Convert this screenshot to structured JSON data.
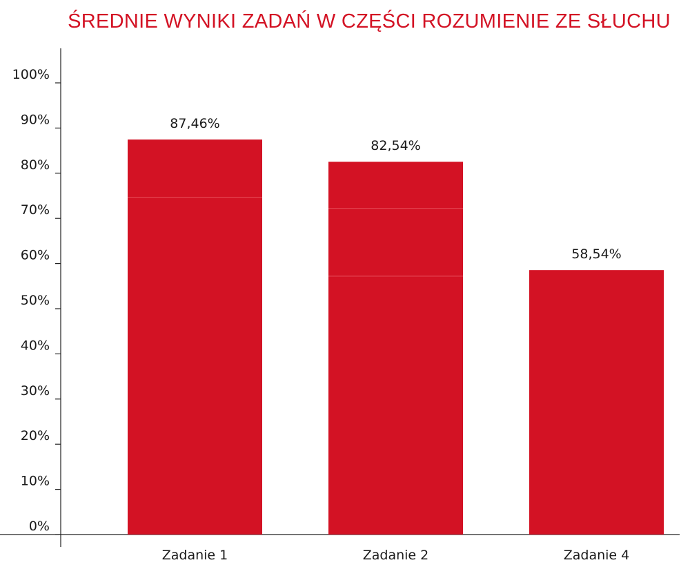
{
  "chart_data": {
    "type": "bar",
    "title": "ŚREDNIE WYNIKI ZADAŃ W CZĘŚCI ROZUMIENIE ZE SŁUCHU",
    "xlabel": "",
    "ylabel": "",
    "categories": [
      "Zadanie 1",
      "Zadanie 2",
      "Zadanie 4"
    ],
    "values": [
      87.46,
      82.54,
      58.54
    ],
    "data_labels": [
      "87,46%",
      "82,54%",
      "58,54%"
    ],
    "y_ticks": [
      0,
      10,
      20,
      30,
      40,
      50,
      60,
      70,
      80,
      90,
      100
    ],
    "y_tick_labels": [
      "0%",
      "10%",
      "20%",
      "30%",
      "40%",
      "50%",
      "60%",
      "70%",
      "80%",
      "90%",
      "100%"
    ],
    "ylim": [
      0,
      100
    ],
    "grid": false,
    "legend": "none"
  },
  "colors": {
    "bar": "#d31224",
    "title": "#d31224",
    "axis": "#222222",
    "segment_line": "#e8505c"
  }
}
